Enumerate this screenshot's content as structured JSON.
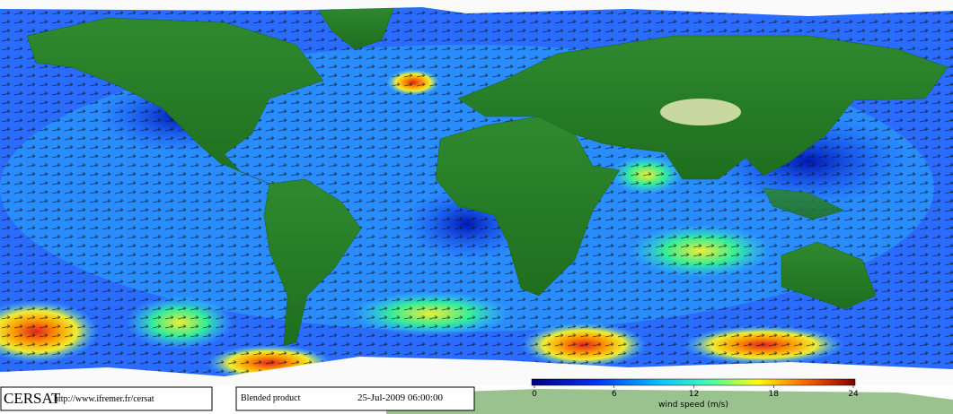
{
  "footer": {
    "logo": "CERSAT",
    "url": "http://www.ifremer.fr/cersat",
    "product": "Blended product",
    "date": "25-Jul-2009 06:00:00"
  },
  "colorbar": {
    "label": "wind speed (m/s)",
    "range": [
      0,
      24
    ],
    "ticks": [
      0,
      6,
      12,
      18,
      24
    ]
  }
}
